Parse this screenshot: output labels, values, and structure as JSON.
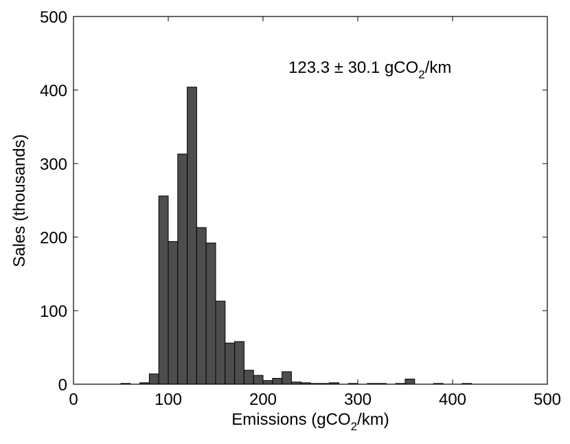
{
  "chart_data": {
    "type": "bar",
    "histogram": true,
    "title": "",
    "xlabel": {
      "before": "Emissions (gCO",
      "subscript": "2",
      "after": "/km)"
    },
    "ylabel": "Sales (thousands)",
    "xlim": [
      0,
      500
    ],
    "ylim": [
      0,
      500
    ],
    "xticks": [
      0,
      100,
      200,
      300,
      400,
      500
    ],
    "yticks": [
      0,
      100,
      200,
      300,
      400,
      500
    ],
    "grid": false,
    "legend": "none",
    "bin_width": 10,
    "bin_starts": [
      50,
      60,
      70,
      80,
      90,
      100,
      110,
      120,
      130,
      140,
      150,
      160,
      170,
      180,
      190,
      200,
      210,
      220,
      230,
      240,
      250,
      260,
      270,
      280,
      290,
      300,
      310,
      320,
      330,
      340,
      350,
      360,
      370,
      380,
      390,
      400,
      410,
      420,
      430,
      440
    ],
    "values": [
      1,
      0,
      2,
      14,
      256,
      194,
      313,
      404,
      213,
      192,
      113,
      56,
      58,
      19,
      12,
      5,
      8,
      17,
      3,
      2,
      1,
      1,
      2,
      0,
      1,
      0,
      1,
      1,
      0,
      1,
      7,
      0,
      0,
      1,
      0,
      0,
      1,
      0,
      0,
      0
    ],
    "bar_color": "#4d4d4d",
    "annotation": {
      "before": "123.3 ± 30.1 gCO",
      "subscript": "2",
      "after": "/km"
    }
  }
}
